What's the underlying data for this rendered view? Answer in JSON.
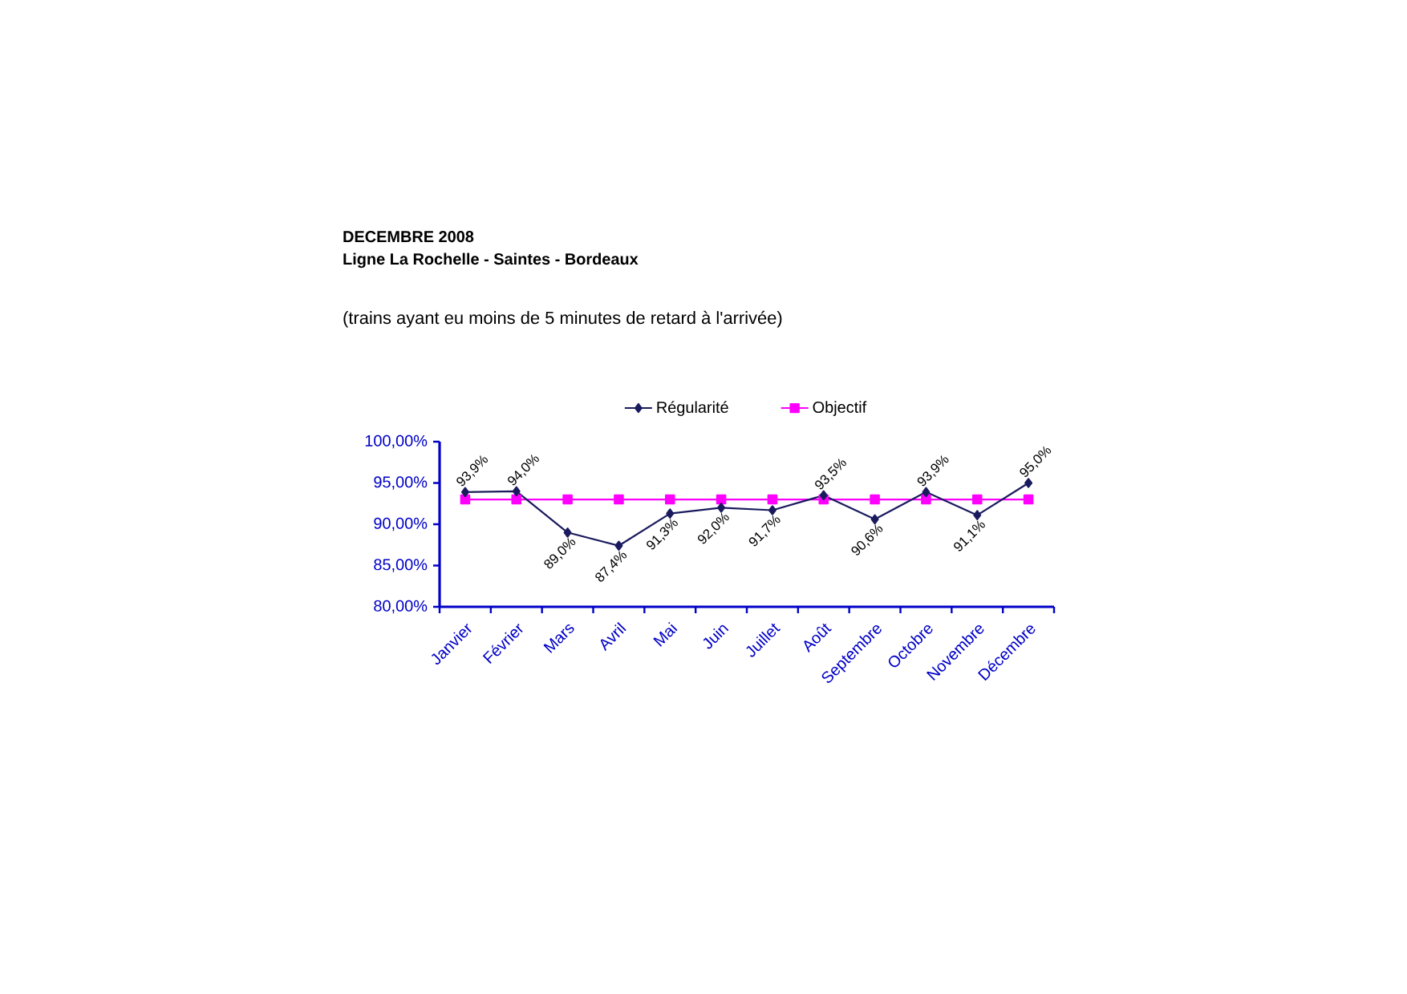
{
  "chart_data": {
    "type": "line",
    "title": "DECEMBRE 2008",
    "subtitle": "Ligne La Rochelle - Saintes - Bordeaux",
    "annotations": [
      "(trains ayant eu moins de 5 minutes de retard à l'arrivée)"
    ],
    "categories": [
      "Janvier",
      "Février",
      "Mars",
      "Avril",
      "Mai",
      "Juin",
      "Juillet",
      "Août",
      "Septembre",
      "Octobre",
      "Novembre",
      "Décembre"
    ],
    "ylim": [
      80,
      100
    ],
    "yticks": [
      {
        "value": 80,
        "label": "80,00%"
      },
      {
        "value": 85,
        "label": "85,00%"
      },
      {
        "value": 90,
        "label": "90,00%"
      },
      {
        "value": 95,
        "label": "95,00%"
      },
      {
        "value": 100,
        "label": "100,00%"
      }
    ],
    "legend": "top",
    "series": [
      {
        "name": "Régularité",
        "color": "#1a1a5e",
        "marker": "diamond",
        "values": [
          93.9,
          94.0,
          89.0,
          87.4,
          91.3,
          92.0,
          91.7,
          93.5,
          90.6,
          93.9,
          91.1,
          95.0
        ],
        "value_labels": [
          "93,9%",
          "94,0%",
          "89,0%",
          "87,4%",
          "91,3%",
          "92,0%",
          "91,7%",
          "93,5%",
          "90,6%",
          "93,9%",
          "91,1%",
          "95,0%"
        ]
      },
      {
        "name": "Objectif",
        "color": "#ff00ff",
        "marker": "square",
        "values": [
          93,
          93,
          93,
          93,
          93,
          93,
          93,
          93,
          93,
          93,
          93,
          93
        ]
      }
    ]
  }
}
